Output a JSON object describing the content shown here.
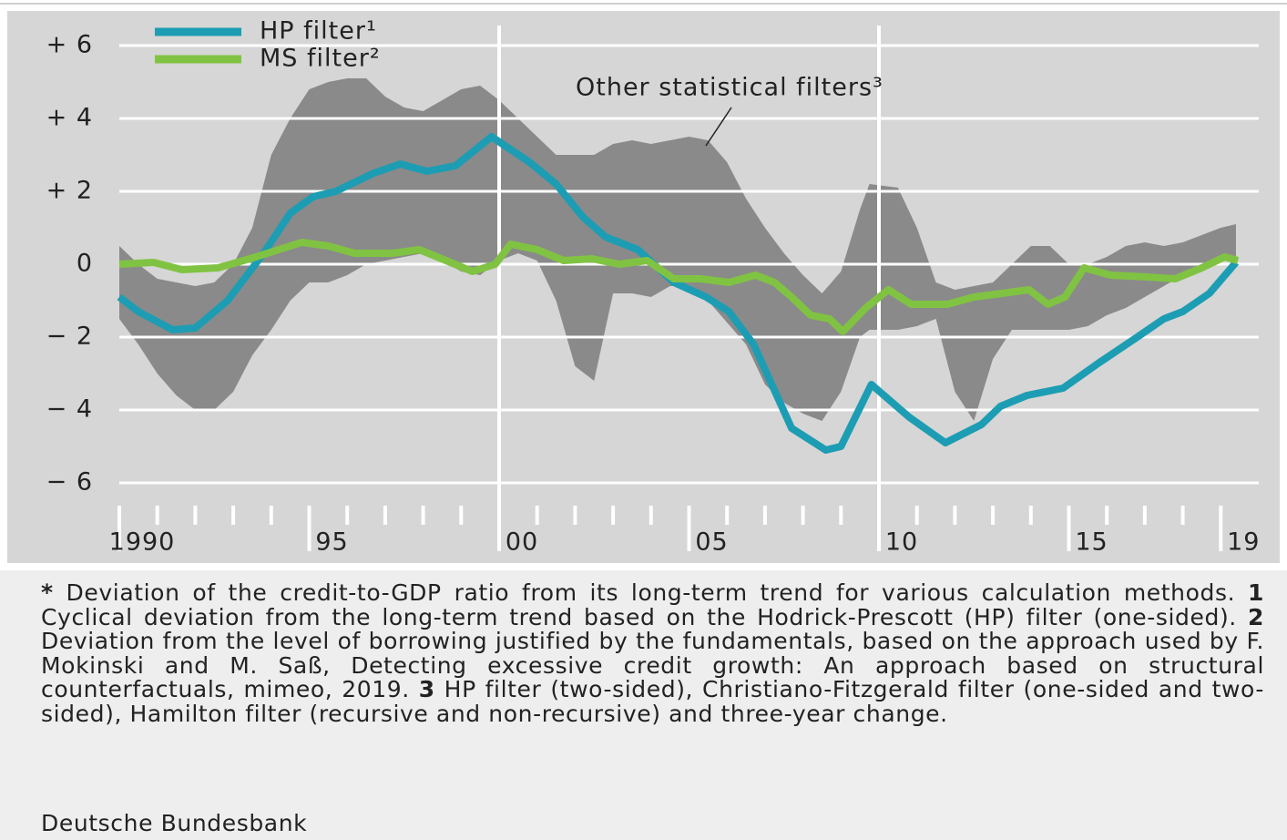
{
  "chart_data": {
    "type": "line",
    "series": [
      {
        "name": "HP filter¹",
        "color": "#1d9db3",
        "x": [
          1990,
          1990.5,
          1991.4,
          1992,
          1992.85,
          1993.8,
          1994.5,
          1995.1,
          1995.7,
          1996.7,
          1997.4,
          1998.1,
          1998.85,
          1999.8,
          2000.8,
          2001.5,
          2002.2,
          2002.8,
          2003.65,
          2004.6,
          2005.45,
          2006.05,
          2006.7,
          2007.7,
          2008.6,
          2009.0,
          2009.8,
          2010.8,
          2011.75,
          2012.7,
          2013.2,
          2013.9,
          2014.85,
          2015.8,
          2016.8,
          2017.5,
          2018.0,
          2018.7,
          2019.4
        ],
        "values": [
          -0.9,
          -1.3,
          -1.8,
          -1.75,
          -1.0,
          0.3,
          1.4,
          1.85,
          2.0,
          2.5,
          2.75,
          2.55,
          2.7,
          3.5,
          2.8,
          2.2,
          1.3,
          0.75,
          0.4,
          -0.5,
          -0.9,
          -1.3,
          -2.2,
          -4.5,
          -5.1,
          -5.0,
          -3.3,
          -4.2,
          -4.9,
          -4.4,
          -3.9,
          -3.6,
          -3.4,
          -2.7,
          -2.0,
          -1.5,
          -1.3,
          -0.8,
          0.05
        ]
      },
      {
        "name": "MS filter²",
        "color": "#80c342",
        "x": [
          1990,
          1990.9,
          1991.65,
          1992.6,
          1993.6,
          1994.8,
          1995.5,
          1996.2,
          1997.2,
          1997.9,
          1998.6,
          1999.3,
          1999.9,
          2000.3,
          2001,
          2001.7,
          2002.45,
          2003.15,
          2003.9,
          2004.6,
          2005.3,
          2006.05,
          2006.75,
          2007.25,
          2007.7,
          2008.2,
          2008.7,
          2009.05,
          2009.65,
          2010.25,
          2010.85,
          2011.8,
          2012.5,
          2013.25,
          2013.95,
          2014.45,
          2014.9,
          2015.4,
          2016.1,
          2017.05,
          2017.8,
          2018.5,
          2019.1,
          2019.45
        ],
        "values": [
          0,
          0.05,
          -0.15,
          -0.1,
          0.2,
          0.6,
          0.5,
          0.3,
          0.3,
          0.4,
          0.1,
          -0.2,
          0.0,
          0.55,
          0.4,
          0.1,
          0.15,
          0.0,
          0.1,
          -0.4,
          -0.4,
          -0.5,
          -0.3,
          -0.5,
          -0.9,
          -1.4,
          -1.5,
          -1.85,
          -1.2,
          -0.7,
          -1.1,
          -1.1,
          -0.9,
          -0.8,
          -0.7,
          -1.1,
          -0.9,
          -0.1,
          -0.3,
          -0.35,
          -0.4,
          -0.1,
          0.2,
          0.1
        ]
      }
    ],
    "band": {
      "name": "Other statistical filters³",
      "color": "#8a8a8a",
      "x": [
        1990,
        1990.5,
        1991,
        1991.5,
        1992,
        1992.5,
        1993,
        1993.5,
        1994,
        1994.5,
        1995,
        1995.5,
        1996,
        1996.5,
        1997,
        1997.5,
        1998,
        1998.5,
        1999,
        1999.5,
        2000,
        2000.5,
        2001,
        2001.5,
        2002,
        2002.5,
        2003,
        2003.5,
        2004,
        2004.5,
        2005,
        2005.5,
        2006,
        2006.5,
        2007,
        2007.5,
        2008,
        2008.5,
        2009,
        2009.5,
        2009.75,
        2010.5,
        2011,
        2011.5,
        2012,
        2012.5,
        2013,
        2013.5,
        2014,
        2014.5,
        2015,
        2015.5,
        2016,
        2016.5,
        2017,
        2017.5,
        2018,
        2018.5,
        2019,
        2019.4
      ],
      "upper": [
        0.5,
        0,
        -0.4,
        -0.5,
        -0.6,
        -0.5,
        0,
        1.0,
        3.0,
        4.0,
        4.8,
        5.0,
        5.1,
        5.1,
        4.6,
        4.3,
        4.2,
        4.5,
        4.8,
        4.9,
        4.5,
        4.0,
        3.5,
        3.0,
        3.0,
        3.0,
        3.3,
        3.4,
        3.3,
        3.4,
        3.5,
        3.4,
        2.8,
        1.8,
        1.0,
        0.3,
        -0.3,
        -0.8,
        -0.2,
        1.5,
        2.2,
        2.1,
        1.0,
        -0.5,
        -0.7,
        -0.6,
        -0.5,
        0,
        0.5,
        0.5,
        0,
        0,
        0.2,
        0.5,
        0.6,
        0.5,
        0.6,
        0.8,
        1.0,
        1.1
      ],
      "lower": [
        -1.5,
        -2.2,
        -3.0,
        -3.6,
        -4.0,
        -4.0,
        -3.5,
        -2.5,
        -1.8,
        -1.0,
        -0.5,
        -0.5,
        -0.3,
        0.0,
        0.1,
        0.2,
        0.3,
        0.1,
        -0.2,
        -0.3,
        0.1,
        0.3,
        0.1,
        -1.0,
        -2.8,
        -3.2,
        -0.8,
        -0.8,
        -0.9,
        -0.6,
        -0.6,
        -1.0,
        -1.6,
        -2.2,
        -3.3,
        -3.8,
        -4.1,
        -4.3,
        -3.5,
        -2.0,
        -1.8,
        -1.8,
        -1.7,
        -1.5,
        -3.5,
        -4.3,
        -2.6,
        -1.8,
        -1.8,
        -1.8,
        -1.8,
        -1.7,
        -1.4,
        -1.2,
        -0.9,
        -0.6,
        -0.3,
        0.0,
        0.1,
        0.2
      ]
    },
    "xlim": [
      1990,
      2020
    ],
    "ylim": [
      -7,
      7
    ],
    "yticks": [
      {
        "value": 6,
        "label": "+ 6"
      },
      {
        "value": 4,
        "label": "+ 4"
      },
      {
        "value": 2,
        "label": "+ 2"
      },
      0,
      {
        "value": -2,
        "label": "− 2"
      },
      {
        "value": -4,
        "label": "− 4"
      },
      {
        "value": -6,
        "label": "− 6"
      }
    ],
    "xticks": [
      {
        "value": 1990,
        "label": "1990"
      },
      {
        "value": 1995,
        "label": "95"
      },
      {
        "value": 2000,
        "label": "00"
      },
      {
        "value": 2005,
        "label": "05"
      },
      {
        "value": 2010,
        "label": "10"
      },
      {
        "value": 2015,
        "label": "15"
      },
      {
        "value": 2019,
        "label": "19"
      }
    ],
    "xminorticks": [
      1991,
      1992,
      1993,
      1994,
      1996,
      1997,
      1998,
      1999,
      2001,
      2002,
      2003,
      2004,
      2006,
      2007,
      2008,
      2009,
      2011,
      2012,
      2013,
      2014,
      2016,
      2017,
      2018
    ],
    "xgrid": [
      2000,
      2010
    ],
    "grid": true
  },
  "notes": [
    {
      "marker": "*",
      "text": "Deviation of the credit-to-GDP ratio from its long-term trend for various calculation methods."
    },
    {
      "marker": "1",
      "text": "Cyclical deviation from the long-term trend based on the Hodrick-Prescott (HP) filter (one-sided)."
    },
    {
      "marker": "2",
      "text": "Deviation from the level of borrowing justified by the fundamentals, based on the approach used by F. Mokinski and M. Saß, Detecting excessive credit growth: An approach based on structural counterfactuals, mimeo, 2019."
    },
    {
      "marker": "3",
      "text": "HP filter (two-sided), Christiano-Fitzgerald filter (one-sided and two-sided), Hamilton filter (recursive and non-recursive) and three-year change."
    }
  ],
  "source": "Deutsche Bundesbank"
}
